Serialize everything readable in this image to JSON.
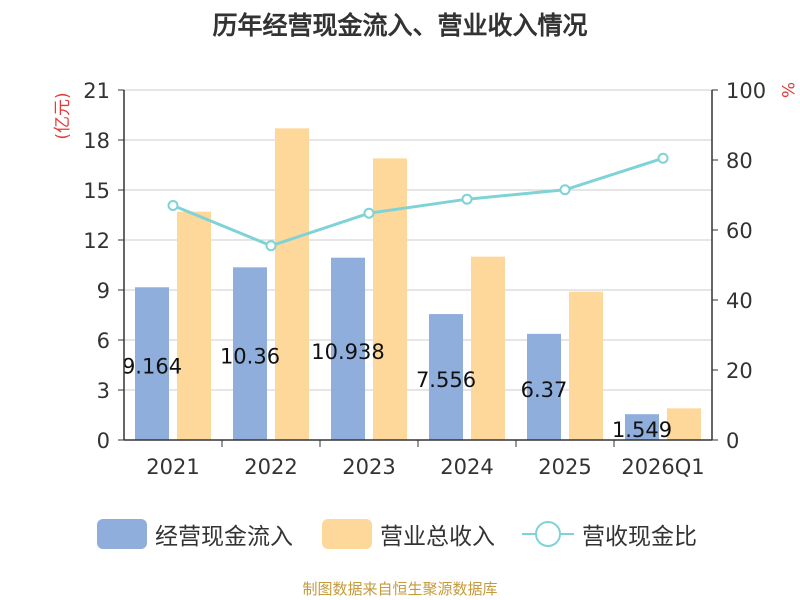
{
  "title": "历年经营现金流入、营业收入情况",
  "source": "制图数据来自恒生聚源数据库",
  "colors": {
    "cash_inflow": "#8faedb",
    "revenue": "#fdd89a",
    "ratio": "#7fd3d6",
    "axis_unit": "#e23b3b"
  },
  "chart_data": {
    "type": "bar",
    "categories": [
      "2021",
      "2022",
      "2023",
      "2024",
      "2025",
      "2026Q1"
    ],
    "series": [
      {
        "name": "经营现金流入",
        "type": "bar",
        "axis": "left",
        "values": [
          9.164,
          10.36,
          10.938,
          7.556,
          6.37,
          1.549
        ],
        "data_labels": [
          "9.164",
          "10.36",
          "10.938",
          "7.556",
          "6.37",
          "1.549"
        ]
      },
      {
        "name": "营业总收入",
        "type": "bar",
        "axis": "left",
        "values": [
          13.7,
          18.7,
          16.9,
          11.0,
          8.9,
          1.9
        ]
      },
      {
        "name": "营收现金比",
        "type": "line",
        "axis": "right",
        "values": [
          67.0,
          55.5,
          64.8,
          68.8,
          71.5,
          80.5
        ]
      }
    ],
    "y_left": {
      "label": "(亿元)",
      "ylim": [
        0,
        21
      ],
      "ticks": [
        "0",
        "3",
        "6",
        "9",
        "12",
        "15",
        "18",
        "21"
      ]
    },
    "y_right": {
      "label": "%",
      "ylim": [
        0,
        100
      ],
      "ticks": [
        "0",
        "20",
        "40",
        "60",
        "80",
        "100"
      ]
    },
    "grid": true,
    "legend": "bottom"
  }
}
